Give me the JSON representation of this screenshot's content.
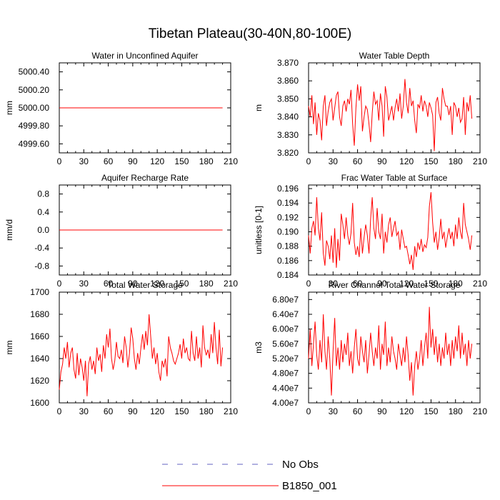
{
  "figure": {
    "title": "Tibetan Plateau(30-40N,80-100E)"
  },
  "legend": {
    "entries": [
      {
        "label": "No Obs",
        "color": "#6060c0",
        "dashed": true
      },
      {
        "label": "B1850_001",
        "color": "#ff0000",
        "dashed": false
      }
    ]
  },
  "chart_data": [
    {
      "type": "line",
      "title": "Water in Unconfined Aquifer",
      "xlabel": "",
      "ylabel": "mm",
      "xlim": [
        0,
        210
      ],
      "xticks": [
        0,
        30,
        60,
        90,
        120,
        150,
        180,
        210
      ],
      "ylim": [
        4999.5,
        5000.5
      ],
      "yticks": [
        4999.6,
        4999.8,
        5000.0,
        5000.2,
        5000.4
      ],
      "ytick_labels": [
        "4999.60",
        "4999.80",
        "5000.00",
        "5000.20",
        "5000.40"
      ],
      "series": [
        {
          "name": "B1850_001",
          "color": "#ff0000",
          "x": [
            0,
            200
          ],
          "y": [
            5000.0,
            5000.0
          ]
        }
      ]
    },
    {
      "type": "line",
      "title": "Water Table Depth",
      "xlabel": "",
      "ylabel": "m",
      "xlim": [
        0,
        210
      ],
      "xticks": [
        0,
        30,
        60,
        90,
        120,
        150,
        180,
        210
      ],
      "ylim": [
        3.82,
        3.87
      ],
      "yticks": [
        3.82,
        3.83,
        3.84,
        3.85,
        3.86,
        3.87
      ],
      "ytick_labels": [
        "3.820",
        "3.830",
        "3.840",
        "3.850",
        "3.860",
        "3.870"
      ],
      "series": [
        {
          "name": "B1850_001",
          "color": "#ff0000",
          "x0": 0,
          "dx": 2,
          "y": [
            3.846,
            3.84,
            3.852,
            3.836,
            3.848,
            3.83,
            3.842,
            3.838,
            3.827,
            3.846,
            3.852,
            3.835,
            3.843,
            3.848,
            3.85,
            3.838,
            3.845,
            3.852,
            3.854,
            3.84,
            3.835,
            3.846,
            3.849,
            3.843,
            3.85,
            3.847,
            3.855,
            3.836,
            3.824,
            3.845,
            3.858,
            3.849,
            3.857,
            3.832,
            3.84,
            3.846,
            3.844,
            3.836,
            3.826,
            3.842,
            3.854,
            3.847,
            3.849,
            3.838,
            3.853,
            3.846,
            3.829,
            3.857,
            3.851,
            3.838,
            3.842,
            3.846,
            3.838,
            3.845,
            3.85,
            3.843,
            3.853,
            3.839,
            3.846,
            3.861,
            3.848,
            3.842,
            3.856,
            3.846,
            3.849,
            3.838,
            3.831,
            3.847,
            3.845,
            3.852,
            3.843,
            3.849,
            3.846,
            3.84,
            3.848,
            3.845,
            3.841,
            3.821,
            3.848,
            3.851,
            3.842,
            3.838,
            3.856,
            3.85,
            3.846,
            3.846,
            3.841,
            3.846,
            3.83,
            3.848,
            3.846,
            3.84,
            3.845,
            3.837,
            3.839,
            3.851,
            3.83,
            3.848,
            3.843,
            3.852,
            3.839
          ]
        }
      ]
    },
    {
      "type": "line",
      "title": "Aquifer Recharge Rate",
      "xlabel": "",
      "ylabel": "mm/d",
      "xlim": [
        0,
        210
      ],
      "xticks": [
        0,
        30,
        60,
        90,
        120,
        150,
        180,
        210
      ],
      "ylim": [
        -1.0,
        1.0
      ],
      "yticks": [
        -0.8,
        -0.4,
        0.0,
        0.4,
        0.8
      ],
      "ytick_labels": [
        "-0.8",
        "-0.4",
        "0.0",
        "0.4",
        "0.8"
      ],
      "series": [
        {
          "name": "B1850_001",
          "color": "#ff0000",
          "x": [
            0,
            200
          ],
          "y": [
            0.0,
            0.0
          ]
        }
      ]
    },
    {
      "type": "line",
      "title": "Frac Water Table at Surface",
      "xlabel": "",
      "ylabel": "unitless [0-1]",
      "xlim": [
        0,
        210
      ],
      "xticks": [
        0,
        30,
        60,
        90,
        120,
        150,
        180,
        210
      ],
      "ylim": [
        0.184,
        0.1965
      ],
      "yticks": [
        0.184,
        0.186,
        0.188,
        0.19,
        0.192,
        0.194,
        0.196
      ],
      "ytick_labels": [
        "0.184",
        "0.186",
        "0.188",
        "0.190",
        "0.192",
        "0.194",
        "0.196"
      ],
      "series": [
        {
          "name": "B1850_001",
          "color": "#ff0000",
          "x0": 0,
          "dx": 2,
          "y": [
            0.1895,
            0.187,
            0.1905,
            0.1915,
            0.1895,
            0.1948,
            0.1905,
            0.1888,
            0.1927,
            0.187,
            0.1853,
            0.1888,
            0.188,
            0.1862,
            0.1895,
            0.1857,
            0.1905,
            0.185,
            0.189,
            0.186,
            0.1925,
            0.191,
            0.189,
            0.192,
            0.1895,
            0.1882,
            0.1898,
            0.194,
            0.1885,
            0.1868,
            0.188,
            0.1865,
            0.1905,
            0.187,
            0.1892,
            0.191,
            0.1895,
            0.187,
            0.1918,
            0.1948,
            0.1905,
            0.189,
            0.1933,
            0.19,
            0.189,
            0.1925,
            0.187,
            0.19,
            0.1885,
            0.191,
            0.192,
            0.1893,
            0.1905,
            0.1915,
            0.1895,
            0.19,
            0.1875,
            0.1903,
            0.189,
            0.1878,
            0.188,
            0.1868,
            0.1855,
            0.1868,
            0.1847,
            0.188,
            0.1865,
            0.1885,
            0.1875,
            0.189,
            0.1872,
            0.1882,
            0.1878,
            0.1892,
            0.1935,
            0.1955,
            0.1913,
            0.1885,
            0.19,
            0.1875,
            0.1892,
            0.1918,
            0.189,
            0.19,
            0.1878,
            0.1893,
            0.1905,
            0.189,
            0.19,
            0.188,
            0.191,
            0.189,
            0.192,
            0.19,
            0.189,
            0.194,
            0.191,
            0.19,
            0.189,
            0.1875,
            0.1895
          ]
        }
      ]
    },
    {
      "type": "line",
      "title": "Total Water Storage",
      "xlabel": "",
      "ylabel": "mm",
      "xlim": [
        0,
        210
      ],
      "xticks": [
        0,
        30,
        60,
        90,
        120,
        150,
        180,
        210
      ],
      "ylim": [
        1600,
        1700
      ],
      "yticks": [
        1600,
        1620,
        1640,
        1660,
        1680,
        1700
      ],
      "ytick_labels": [
        "1600",
        "1620",
        "1640",
        "1660",
        "1680",
        "1700"
      ],
      "series": [
        {
          "name": "B1850_001",
          "color": "#ff0000",
          "x0": 0,
          "dx": 2,
          "y": [
            1612,
            1628,
            1635,
            1650,
            1640,
            1655,
            1632,
            1645,
            1650,
            1630,
            1622,
            1645,
            1625,
            1640,
            1632,
            1620,
            1638,
            1606,
            1635,
            1642,
            1630,
            1638,
            1626,
            1650,
            1638,
            1644,
            1628,
            1652,
            1640,
            1662,
            1650,
            1667,
            1640,
            1630,
            1638,
            1655,
            1642,
            1640,
            1648,
            1636,
            1660,
            1650,
            1632,
            1645,
            1668,
            1658,
            1640,
            1630,
            1645,
            1635,
            1650,
            1662,
            1648,
            1665,
            1652,
            1680,
            1660,
            1640,
            1650,
            1635,
            1645,
            1628,
            1620,
            1638,
            1632,
            1640,
            1624,
            1660,
            1650,
            1645,
            1638,
            1635,
            1640,
            1645,
            1653,
            1640,
            1658,
            1645,
            1650,
            1640,
            1638,
            1665,
            1645,
            1638,
            1660,
            1640,
            1650,
            1632,
            1670,
            1650,
            1643,
            1648,
            1640,
            1662,
            1645,
            1673,
            1650,
            1635,
            1666,
            1633,
            1650
          ]
        }
      ]
    },
    {
      "type": "line",
      "title": "River Channel Total Water Storage",
      "xlabel": "",
      "ylabel": "m3",
      "xlim": [
        0,
        210
      ],
      "xticks": [
        0,
        30,
        60,
        90,
        120,
        150,
        180,
        210
      ],
      "ylim": [
        40000000.0,
        70000000.0
      ],
      "yticks": [
        40000000.0,
        44000000.0,
        48000000.0,
        52000000.0,
        56000000.0,
        60000000.0,
        64000000.0,
        68000000.0
      ],
      "ytick_labels": [
        "4.00e7",
        "4.40e7",
        "4.80e7",
        "5.20e7",
        "5.60e7",
        "6.00e7",
        "6.40e7",
        "6.80e7"
      ],
      "series": [
        {
          "name": "B1850_001",
          "color": "#ff0000",
          "x0": 0,
          "dx": 2,
          "y": [
            52000000.0,
            60000000.0,
            50000000.0,
            56000000.0,
            62000000.0,
            53000000.0,
            49000000.0,
            57000000.0,
            51000000.0,
            64000000.0,
            54000000.0,
            49000000.0,
            58000000.0,
            52000000.0,
            42000000.0,
            54000000.0,
            63000000.0,
            50000000.0,
            55000000.0,
            49000000.0,
            57000000.0,
            51000000.0,
            56000000.0,
            53000000.0,
            59000000.0,
            50000000.0,
            54000000.0,
            48000000.0,
            55000000.0,
            60000000.0,
            52000000.0,
            50000000.0,
            58000000.0,
            54000000.0,
            51000000.0,
            57000000.0,
            48000000.0,
            53000000.0,
            59000000.0,
            54000000.0,
            50000000.0,
            55000000.0,
            52000000.0,
            61000000.0,
            49000000.0,
            56000000.0,
            53000000.0,
            62000000.0,
            50000000.0,
            55000000.0,
            51000000.0,
            58000000.0,
            54000000.0,
            52000000.0,
            49000000.0,
            56000000.0,
            53000000.0,
            50000000.0,
            55000000.0,
            51000000.0,
            58000000.0,
            53000000.0,
            46000000.0,
            51000000.0,
            42000000.0,
            50000000.0,
            54000000.0,
            49000000.0,
            52000000.0,
            57000000.0,
            50000000.0,
            55000000.0,
            59000000.0,
            52000000.0,
            66000000.0,
            55000000.0,
            60000000.0,
            53000000.0,
            58000000.0,
            51000000.0,
            56000000.0,
            50000000.0,
            55000000.0,
            52000000.0,
            59000000.0,
            53000000.0,
            56000000.0,
            50000000.0,
            57000000.0,
            52000000.0,
            58000000.0,
            54000000.0,
            61000000.0,
            52000000.0,
            59000000.0,
            53000000.0,
            56000000.0,
            50000000.0,
            57000000.0,
            52000000.0,
            56000000.0
          ]
        }
      ]
    }
  ]
}
